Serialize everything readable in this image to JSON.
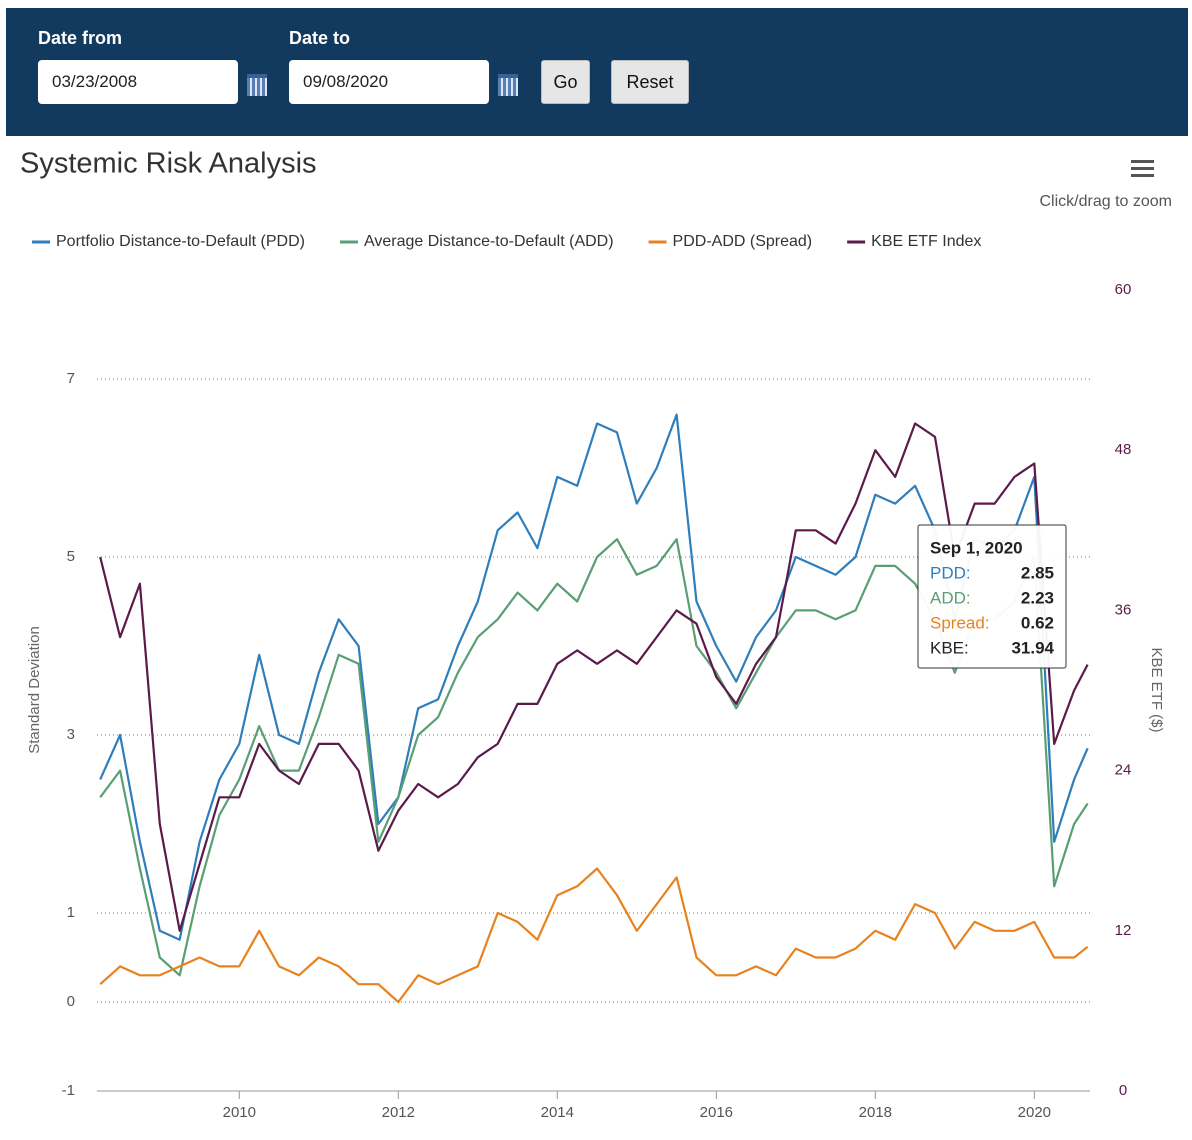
{
  "form": {
    "date_from": {
      "label": "Date from",
      "value": "03/23/2008"
    },
    "date_to": {
      "label": "Date to",
      "value": "09/08/2020"
    },
    "go": "Go",
    "reset": "Reset"
  },
  "chart_data": {
    "type": "line",
    "title": "Systemic Risk Analysis",
    "zoom_hint": "Click/drag to zoom",
    "y_label": "Standard Deviation",
    "y2_label": "KBE ETF ($)",
    "x": [
      2008.25,
      2008.5,
      2008.75,
      2009,
      2009.25,
      2009.5,
      2009.75,
      2010,
      2010.25,
      2010.5,
      2010.75,
      2011,
      2011.25,
      2011.5,
      2011.75,
      2012,
      2012.25,
      2012.5,
      2012.75,
      2013,
      2013.25,
      2013.5,
      2013.75,
      2014,
      2014.25,
      2014.5,
      2014.75,
      2015,
      2015.25,
      2015.5,
      2015.75,
      2016,
      2016.25,
      2016.5,
      2016.75,
      2017,
      2017.25,
      2017.5,
      2017.75,
      2018,
      2018.25,
      2018.5,
      2018.75,
      2019,
      2019.25,
      2019.5,
      2019.75,
      2020,
      2020.25,
      2020.5,
      2020.67
    ],
    "xlim": [
      2008.21,
      2020.7
    ],
    "xticks": [
      2010,
      2012,
      2014,
      2016,
      2018,
      2020
    ],
    "ylim": [
      -1,
      8
    ],
    "yticks": [
      -1,
      0,
      1,
      3,
      5,
      7
    ],
    "y2lim": [
      0,
      60
    ],
    "y2ticks": [
      0,
      12,
      24,
      36,
      48,
      60
    ],
    "grid": true,
    "series": [
      {
        "name": "Portfolio Distance-to-Default (PDD)",
        "color": "#2f7ebc",
        "values": [
          2.5,
          3.0,
          1.8,
          0.8,
          0.7,
          1.8,
          2.5,
          2.9,
          3.9,
          3.0,
          2.9,
          3.7,
          4.3,
          4.0,
          2.0,
          2.3,
          3.3,
          3.4,
          4.0,
          4.5,
          5.3,
          5.5,
          5.1,
          5.9,
          5.8,
          6.5,
          6.4,
          5.6,
          6.0,
          6.6,
          4.5,
          4.0,
          3.6,
          4.1,
          4.4,
          5.0,
          4.9,
          4.8,
          5.0,
          5.7,
          5.6,
          5.8,
          5.3,
          4.3,
          5.2,
          5.1,
          5.3,
          5.9,
          1.8,
          2.5,
          2.85
        ]
      },
      {
        "name": "Average Distance-to-Default (ADD)",
        "color": "#5a9e74",
        "values": [
          2.3,
          2.6,
          1.5,
          0.5,
          0.3,
          1.3,
          2.1,
          2.5,
          3.1,
          2.6,
          2.6,
          3.2,
          3.9,
          3.8,
          1.8,
          2.3,
          3.0,
          3.2,
          3.7,
          4.1,
          4.3,
          4.6,
          4.4,
          4.7,
          4.5,
          5.0,
          5.2,
          4.8,
          4.9,
          5.2,
          4.0,
          3.7,
          3.3,
          3.7,
          4.1,
          4.4,
          4.4,
          4.3,
          4.4,
          4.9,
          4.9,
          4.7,
          4.3,
          3.7,
          4.3,
          4.3,
          4.5,
          5.0,
          1.3,
          2.0,
          2.23
        ]
      },
      {
        "name": "PDD-ADD (Spread)",
        "color": "#e8821e",
        "values": [
          0.2,
          0.4,
          0.3,
          0.3,
          0.4,
          0.5,
          0.4,
          0.4,
          0.8,
          0.4,
          0.3,
          0.5,
          0.4,
          0.2,
          0.2,
          0.0,
          0.3,
          0.2,
          0.3,
          0.4,
          1.0,
          0.9,
          0.7,
          1.2,
          1.3,
          1.5,
          1.2,
          0.8,
          1.1,
          1.4,
          0.5,
          0.3,
          0.3,
          0.4,
          0.3,
          0.6,
          0.5,
          0.5,
          0.6,
          0.8,
          0.7,
          1.1,
          1.0,
          0.6,
          0.9,
          0.8,
          0.8,
          0.9,
          0.5,
          0.5,
          0.62
        ]
      },
      {
        "name": "KBE ETF Index",
        "color": "#5b1a4a",
        "axis": "y2",
        "values": [
          40,
          34,
          38,
          20,
          12,
          17,
          22,
          22,
          26,
          24,
          23,
          26,
          26,
          24,
          18,
          21,
          23,
          22,
          23,
          25,
          26,
          29,
          29,
          32,
          33,
          32,
          33,
          32,
          34,
          36,
          35,
          31,
          29,
          32,
          34,
          42,
          42,
          41,
          44,
          48,
          46,
          50,
          49,
          40,
          44,
          44,
          46,
          47,
          26,
          30,
          31.94
        ]
      }
    ],
    "tooltip": {
      "title": "Sep 1, 2020",
      "rows": [
        {
          "label": "PDD:",
          "value": 2.85
        },
        {
          "label": "ADD:",
          "value": 2.23
        },
        {
          "label": "Spread:",
          "value": 0.62
        },
        {
          "label": "KBE:",
          "value": 31.94
        }
      ]
    }
  }
}
